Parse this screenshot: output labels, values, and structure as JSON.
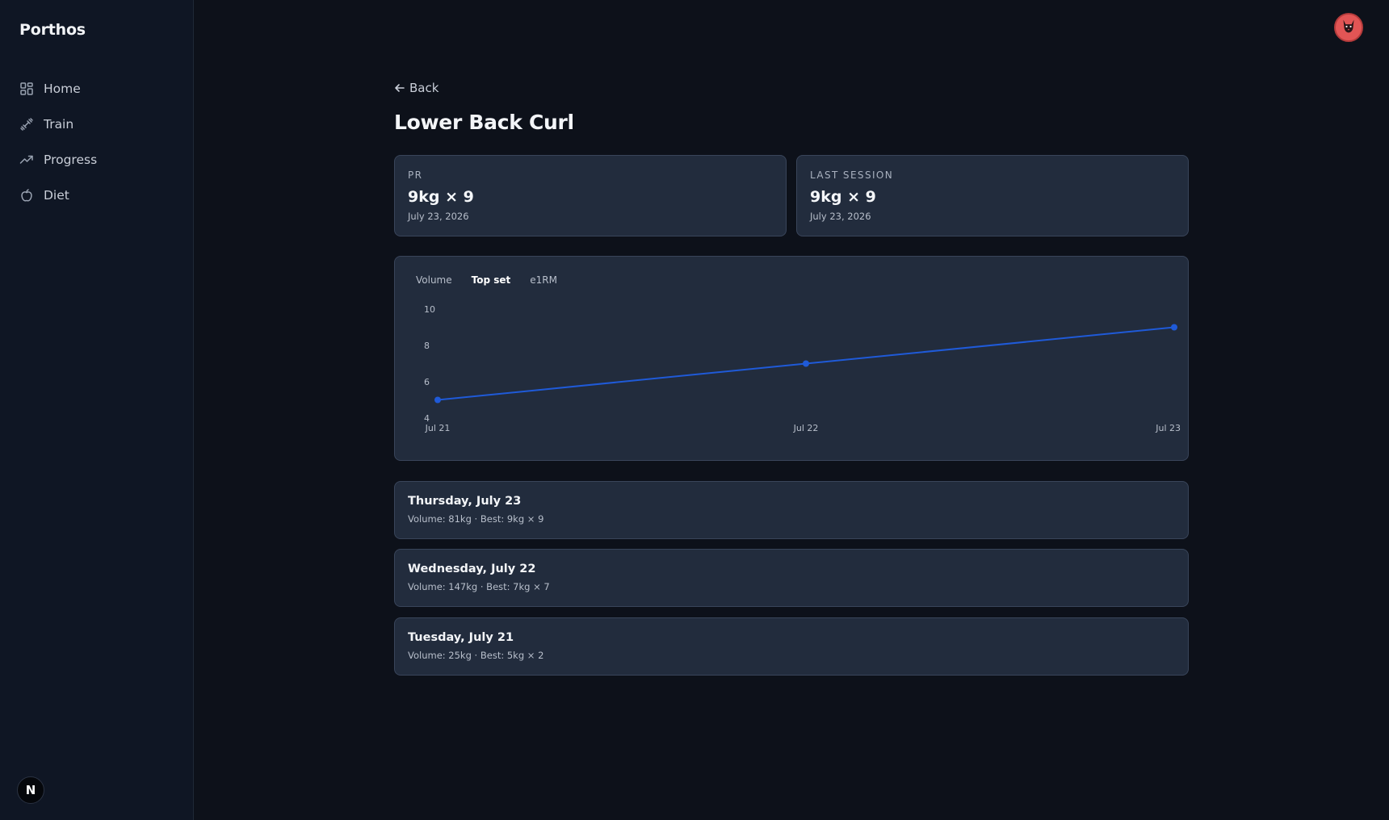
{
  "app": {
    "brand": "Porthos"
  },
  "sidebar": {
    "items": [
      {
        "label": "Home",
        "icon": "grid-icon"
      },
      {
        "label": "Train",
        "icon": "dumbbell-icon"
      },
      {
        "label": "Progress",
        "icon": "trend-up-icon"
      },
      {
        "label": "Diet",
        "icon": "apple-icon"
      }
    ],
    "badge": "N"
  },
  "header": {
    "avatar_icon": "cat-face-icon"
  },
  "page": {
    "back_label": "Back",
    "title": "Lower Back Curl"
  },
  "stats": {
    "pr": {
      "label": "PR",
      "value": "9kg × 9",
      "date": "July 23, 2026"
    },
    "last": {
      "label": "LAST SESSION",
      "value": "9kg × 9",
      "date": "July 23, 2026"
    }
  },
  "chart_tabs": [
    {
      "label": "Volume",
      "active": false
    },
    {
      "label": "Top set",
      "active": true
    },
    {
      "label": "e1RM",
      "active": false
    }
  ],
  "chart_data": {
    "type": "line",
    "title": "",
    "xlabel": "",
    "ylabel": "",
    "categories": [
      "Jul 21",
      "Jul 22",
      "Jul 23"
    ],
    "values": [
      5,
      7,
      9
    ],
    "ylim": [
      4,
      10
    ],
    "yticks": [
      "10",
      "8",
      "6",
      "4"
    ],
    "line_color": "#1f5ad8",
    "grid": false
  },
  "sessions": [
    {
      "title": "Thursday, July 23",
      "meta": "Volume: 81kg · Best: 9kg × 9"
    },
    {
      "title": "Wednesday, July 22",
      "meta": "Volume: 147kg · Best: 7kg × 7"
    },
    {
      "title": "Tuesday, July 21",
      "meta": "Volume: 25kg · Best: 5kg × 2"
    }
  ]
}
